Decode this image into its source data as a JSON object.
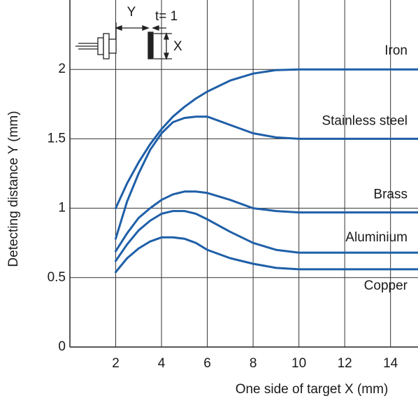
{
  "chart_data": {
    "type": "line",
    "x_label": "One side of target X (mm)",
    "y_label": "Detecting distance Y (mm)",
    "annotations": [
      "Y",
      "t= 1",
      "X"
    ],
    "x": [
      2,
      2.5,
      3,
      3.5,
      4,
      4.5,
      5,
      5.5,
      6,
      7,
      8,
      9,
      10,
      12,
      15.2
    ],
    "series": [
      {
        "name": "Iron",
        "color": "#1f5fa8",
        "values": [
          1.0,
          1.18,
          1.33,
          1.46,
          1.57,
          1.66,
          1.73,
          1.79,
          1.84,
          1.92,
          1.97,
          1.995,
          2.0,
          2.0,
          2.0
        ]
      },
      {
        "name": "Stainless steel",
        "color": "#1f5fa8",
        "values": [
          0.78,
          1.05,
          1.25,
          1.42,
          1.54,
          1.62,
          1.65,
          1.66,
          1.66,
          1.6,
          1.54,
          1.51,
          1.5,
          1.5,
          1.5
        ]
      },
      {
        "name": "Brass",
        "color": "#1f5fa8",
        "values": [
          0.69,
          0.82,
          0.93,
          1.0,
          1.06,
          1.1,
          1.12,
          1.12,
          1.11,
          1.06,
          1.0,
          0.98,
          0.97,
          0.97,
          0.97
        ]
      },
      {
        "name": "Aluminium",
        "color": "#1f5fa8",
        "values": [
          0.62,
          0.74,
          0.84,
          0.91,
          0.96,
          0.98,
          0.98,
          0.96,
          0.92,
          0.83,
          0.75,
          0.7,
          0.68,
          0.68,
          0.68
        ]
      },
      {
        "name": "Copper",
        "color": "#1f5fa8",
        "values": [
          0.54,
          0.64,
          0.71,
          0.76,
          0.79,
          0.79,
          0.78,
          0.75,
          0.7,
          0.64,
          0.6,
          0.57,
          0.56,
          0.56,
          0.56
        ]
      }
    ],
    "xlim": [
      0,
      15.2
    ],
    "ylim": [
      0,
      2.5
    ],
    "xticks": [
      2,
      4,
      6,
      8,
      10,
      12,
      14
    ],
    "yticks": [
      0,
      0.5,
      1,
      1.5,
      2
    ],
    "grid": true
  }
}
